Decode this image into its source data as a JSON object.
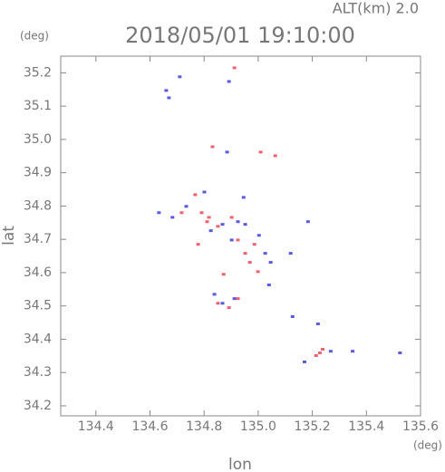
{
  "chart_data": {
    "type": "scatter",
    "title": "2018/05/01 19:10:00",
    "subtitle": "ALT(km) 2.0",
    "x_label": "lon",
    "y_label": "lat",
    "x_unit": "(deg)",
    "y_unit": "(deg)",
    "xlim": [
      134.27,
      135.6
    ],
    "ylim": [
      34.17,
      35.25
    ],
    "xticks": [
      134.4,
      134.6,
      134.8,
      {
        "value": 135,
        "label": "135.0"
      },
      135.2,
      135.4,
      135.6
    ],
    "yticks": [
      34.2,
      34.3,
      34.4,
      34.5,
      34.6,
      34.7,
      34.8,
      34.9,
      {
        "value": 35,
        "label": "35.0"
      },
      35.1,
      35.2
    ],
    "series": [
      {
        "color": "#f06272",
        "x": [
          134.912,
          134.831,
          135.009,
          135.063,
          134.767,
          134.791,
          134.811,
          134.851,
          134.778,
          134.902,
          134.925,
          134.952,
          134.999,
          134.872,
          134.925,
          134.851,
          134.892,
          134.969,
          135.228,
          135.214,
          135.238,
          134.717,
          134.818,
          134.986
        ],
        "values": [
          35.215,
          34.978,
          34.962,
          34.951,
          34.834,
          34.78,
          34.753,
          34.739,
          34.685,
          34.766,
          34.698,
          34.658,
          34.603,
          34.595,
          34.522,
          34.508,
          34.495,
          34.631,
          34.359,
          34.351,
          34.37,
          34.78,
          34.766,
          34.685
        ]
      },
      {
        "color": "#5a5ae0",
        "x": [
          134.66,
          134.67,
          134.71,
          134.892,
          134.885,
          134.801,
          134.946,
          134.633,
          134.683,
          134.734,
          134.825,
          134.868,
          134.925,
          134.952,
          135.003,
          134.902,
          135.026,
          135.046,
          135.04,
          134.838,
          134.868,
          134.912,
          135.184,
          135.12,
          135.127,
          135.221,
          135.171,
          135.349,
          135.524,
          135.268
        ],
        "values": [
          35.147,
          35.125,
          35.188,
          35.174,
          34.962,
          34.842,
          34.826,
          34.78,
          34.766,
          34.799,
          34.726,
          34.745,
          34.753,
          34.745,
          34.712,
          34.698,
          34.658,
          34.631,
          34.563,
          34.535,
          34.508,
          34.522,
          34.753,
          34.658,
          34.468,
          34.446,
          34.332,
          34.364,
          34.359,
          34.364
        ]
      }
    ]
  }
}
